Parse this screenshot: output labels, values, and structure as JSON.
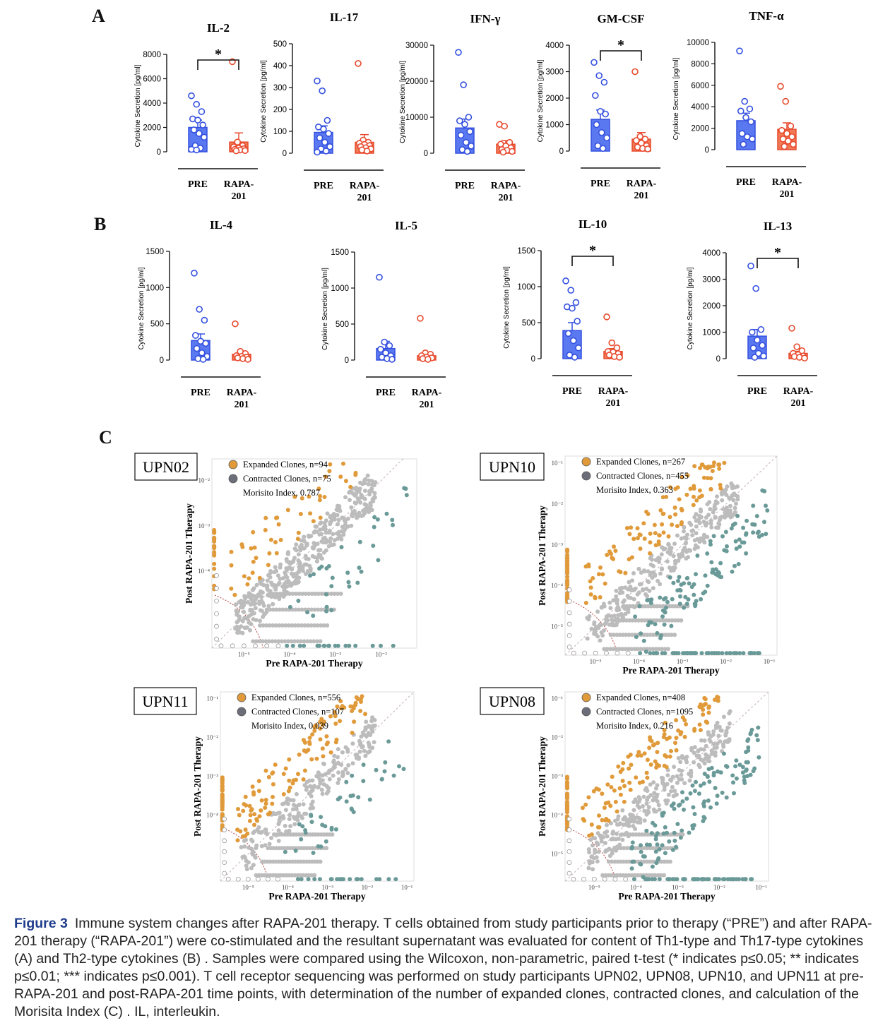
{
  "panels": {
    "a": "A",
    "b": "B",
    "c": "C"
  },
  "colors": {
    "pre": "#3450e0",
    "pre_fill": "#5a78f0",
    "rapa": "#e84a2e",
    "rapa_fill": "#f07a55",
    "expanded": "#e09a3a",
    "contracted": "#6a9a98",
    "neutral": "#bcbcbc",
    "caption_label": "#1f3d8c"
  },
  "chart_data": [
    {
      "type": "bar",
      "title": "IL-2",
      "ylabel": "Cytokine Secretion [pg/ml]",
      "categories": [
        "PRE",
        "RAPA-\n201"
      ],
      "ylim": [
        0,
        8000
      ],
      "yticks": [
        0,
        2000,
        4000,
        6000,
        8000
      ],
      "yticklabels": [
        "0",
        "2000",
        "4000",
        "6000",
        "8000"
      ],
      "means": [
        2000,
        800
      ],
      "errors": [
        600,
        750
      ],
      "points": [
        [
          4600,
          3900,
          3300,
          2700,
          2600,
          2200,
          1800,
          1500,
          1200,
          500,
          300,
          200,
          150
        ],
        [
          7400,
          800,
          500,
          400,
          300,
          250,
          200,
          150,
          100,
          80
        ]
      ],
      "significance": "*"
    },
    {
      "type": "bar",
      "title": "IL-17",
      "ylabel": "Cytokine Secretion [pg/ml]",
      "categories": [
        "PRE",
        "RAPA-\n201"
      ],
      "ylim": [
        0,
        500
      ],
      "yticks": [
        0,
        100,
        200,
        300,
        400,
        500
      ],
      "yticklabels": [
        "0",
        "100",
        "200",
        "300",
        "400",
        "500"
      ],
      "means": [
        95,
        50
      ],
      "errors": [
        30,
        35
      ],
      "points": [
        [
          330,
          285,
          150,
          120,
          110,
          90,
          70,
          50,
          30,
          20,
          10,
          5
        ],
        [
          410,
          60,
          50,
          45,
          40,
          35,
          30,
          25,
          20,
          15,
          10
        ]
      ],
      "significance": ""
    },
    {
      "type": "bar",
      "title": "IFN-γ",
      "ylabel": "Cytokine Secretion [pg/ml]",
      "categories": [
        "PRE",
        "RAPA-\n201"
      ],
      "ylim": [
        0,
        30000
      ],
      "yticks": [
        0,
        10000,
        20000,
        30000
      ],
      "yticklabels": [
        "0",
        "10000",
        "20000",
        "30000"
      ],
      "means": [
        7000,
        2500
      ],
      "errors": [
        2500,
        1000
      ],
      "points": [
        [
          28000,
          19000,
          10000,
          9000,
          8000,
          6000,
          5000,
          3000,
          2000,
          1000,
          500
        ],
        [
          8000,
          7500,
          3000,
          2500,
          2000,
          1500,
          1000,
          800,
          500,
          300
        ]
      ],
      "significance": ""
    },
    {
      "type": "bar",
      "title": "GM-CSF",
      "ylabel": "Cytokine Secretion [pg/ml]",
      "categories": [
        "PRE",
        "RAPA-\n201"
      ],
      "ylim": [
        0,
        4000
      ],
      "yticks": [
        0,
        1000,
        2000,
        3000,
        4000
      ],
      "yticklabels": [
        "0",
        "1000",
        "2000",
        "3000",
        "4000"
      ],
      "means": [
        1200,
        450
      ],
      "errors": [
        350,
        250
      ],
      "points": [
        [
          3350,
          2850,
          2600,
          2100,
          1500,
          1400,
          1000,
          700,
          500,
          200,
          100
        ],
        [
          3000,
          550,
          450,
          400,
          300,
          200,
          150,
          100,
          80
        ]
      ],
      "significance": "*"
    },
    {
      "type": "bar",
      "title": "TNF-α",
      "ylabel": "Cytokine Secretion [pg/ml]",
      "categories": [
        "PRE",
        "RAPA-\n201"
      ],
      "ylim": [
        0,
        10000
      ],
      "yticks": [
        0,
        2000,
        4000,
        6000,
        8000,
        10000
      ],
      "yticklabels": [
        "0",
        "2000",
        "4000",
        "6000",
        "8000",
        "10000"
      ],
      "means": [
        2700,
        1900
      ],
      "errors": [
        700,
        600
      ],
      "points": [
        [
          9200,
          4500,
          3800,
          3600,
          3000,
          2600,
          1500,
          1200,
          1000,
          500
        ],
        [
          5900,
          4500,
          2200,
          1800,
          1500,
          1200,
          1000,
          800,
          500,
          300
        ]
      ],
      "significance": ""
    },
    {
      "type": "bar",
      "title": "IL-4",
      "ylabel": "Cytokine Secretion [pg/ml]",
      "categories": [
        "PRE",
        "RAPA-\n201"
      ],
      "ylim": [
        0,
        1500
      ],
      "yticks": [
        0,
        500,
        1000,
        1500
      ],
      "yticklabels": [
        "0",
        "500",
        "1000",
        "1500"
      ],
      "means": [
        270,
        80
      ],
      "errors": [
        90,
        40
      ],
      "points": [
        [
          1200,
          700,
          550,
          340,
          260,
          230,
          160,
          100,
          50,
          20,
          10
        ],
        [
          500,
          120,
          90,
          60,
          50,
          40,
          30,
          20,
          10
        ]
      ],
      "significance": ""
    },
    {
      "type": "bar",
      "title": "IL-5",
      "ylabel": "Cytokine Secretion [pg/ml]",
      "categories": [
        "PRE",
        "RAPA-\n201"
      ],
      "ylim": [
        0,
        1500
      ],
      "yticks": [
        0,
        500,
        1000,
        1500
      ],
      "yticklabels": [
        "0",
        "500",
        "1000",
        "1500"
      ],
      "means": [
        160,
        60
      ],
      "errors": [
        100,
        40
      ],
      "points": [
        [
          1150,
          250,
          200,
          150,
          100,
          60,
          40,
          20,
          10
        ],
        [
          580,
          100,
          80,
          60,
          40,
          30,
          20,
          10
        ]
      ],
      "significance": ""
    },
    {
      "type": "bar",
      "title": "IL-10",
      "ylabel": "Cytokine Secretion [pg/ml]",
      "categories": [
        "PRE",
        "RAPA-\n201"
      ],
      "ylim": [
        0,
        1500
      ],
      "yticks": [
        0,
        500,
        1000,
        1500
      ],
      "yticklabels": [
        "0",
        "500",
        "1000",
        "1500"
      ],
      "means": [
        390,
        100
      ],
      "errors": [
        110,
        40
      ],
      "points": [
        [
          1080,
          950,
          780,
          720,
          700,
          520,
          350,
          250,
          150,
          50,
          20
        ],
        [
          580,
          220,
          150,
          100,
          90,
          70,
          50,
          30,
          20
        ]
      ],
      "significance": "*"
    },
    {
      "type": "bar",
      "title": "IL-13",
      "ylabel": "Cytokine Secretion [pg/ml]",
      "categories": [
        "PRE",
        "RAPA-\n201"
      ],
      "ylim": [
        0,
        4000
      ],
      "yticks": [
        0,
        1000,
        2000,
        3000,
        4000
      ],
      "yticklabels": [
        "0",
        "1000",
        "2000",
        "3000",
        "4000"
      ],
      "means": [
        850,
        200
      ],
      "errors": [
        250,
        80
      ],
      "points": [
        [
          3500,
          2650,
          1100,
          1000,
          700,
          500,
          400,
          200,
          100,
          50
        ],
        [
          1150,
          450,
          300,
          200,
          150,
          100,
          80,
          50,
          20
        ]
      ],
      "significance": "*"
    },
    {
      "type": "scatter",
      "sample": "UPN02",
      "xlabel": "Pre RAPA-201 Therapy",
      "ylabel": "Post RAPA-201 Therapy",
      "xlim": [
        2e-06,
        0.06
      ],
      "ylim": [
        2e-06,
        0.03
      ],
      "log": true,
      "xticks": [
        "10⁻⁵",
        "10⁻⁴",
        "10⁻³",
        "10⁻²"
      ],
      "yticks": [
        "10⁻²",
        "10⁻³",
        "10⁻⁴"
      ],
      "legend": [
        "Expanded Clones, n=94",
        "Contracted Clones, n=75",
        "Morisito Index, 0.787"
      ],
      "expanded_n": 94,
      "contracted_n": 75,
      "morisita_index": 0.787,
      "seed": 7
    },
    {
      "type": "scatter",
      "sample": "UPN10",
      "xlabel": "Pre RAPA-201 Therapy",
      "ylabel": "Post RAPA-201 Therapy",
      "xlim": [
        2e-06,
        0.15
      ],
      "ylim": [
        2e-06,
        0.15
      ],
      "log": true,
      "xticks": [
        "10⁻⁵",
        "10⁻⁴",
        "10⁻³",
        "10⁻²",
        "10⁻¹"
      ],
      "yticks": [
        "10⁻¹",
        "10⁻²",
        "10⁻³",
        "10⁻⁴",
        "10⁻⁵"
      ],
      "legend": [
        "Expanded Clones, n=267",
        "Contracted Clones, n=455",
        "Morisito Index, 0.363"
      ],
      "expanded_n": 267,
      "contracted_n": 455,
      "morisita_index": 0.363,
      "seed": 13
    },
    {
      "type": "scatter",
      "sample": "UPN11",
      "xlabel": "Pre RAPA-201 Therapy",
      "ylabel": "Post RAPA-201 Therapy",
      "xlim": [
        2e-06,
        0.15
      ],
      "ylim": [
        2e-06,
        0.15
      ],
      "log": true,
      "xticks": [
        "10⁻⁵",
        "10⁻⁴",
        "10⁻³",
        "10⁻²",
        "10⁻¹"
      ],
      "yticks": [
        "10⁻¹",
        "10⁻²",
        "10⁻³",
        "10⁻⁴"
      ],
      "legend": [
        "Expanded Clones, n=556",
        "Contracted Clones, n=107",
        "Morisito Index, 0.039"
      ],
      "expanded_n": 556,
      "contracted_n": 107,
      "morisita_index": 0.039,
      "seed": 29
    },
    {
      "type": "scatter",
      "sample": "UPN08",
      "xlabel": "Pre RAPA-201 Therapy",
      "ylabel": "Post RAPA-201 Therapy",
      "xlim": [
        2e-06,
        0.15
      ],
      "ylim": [
        2e-06,
        0.15
      ],
      "log": true,
      "xticks": [
        "10⁻⁵",
        "10⁻⁴",
        "10⁻³",
        "10⁻²",
        "10⁻¹"
      ],
      "yticks": [
        "10⁻¹",
        "10⁻²",
        "10⁻³",
        "10⁻⁴",
        "10⁻⁵"
      ],
      "legend": [
        "Expanded Clones, n=408",
        "Contracted Clones, n=1095",
        "Morisito Index, 0.216"
      ],
      "expanded_n": 408,
      "contracted_n": 1095,
      "morisita_index": 0.216,
      "seed": 41
    }
  ],
  "caption": {
    "label": "Figure 3",
    "text": "Immune system changes after RAPA-201 therapy. T cells obtained from study participants prior to therapy (“PRE”) and after RAPA-201 therapy (“RAPA-201”) were co-stimulated and the resultant supernatant was evaluated for content of Th1-type and Th17-type cytokines (A)  and Th2-type cytokines (B) . Samples were compared using the Wilcoxon, non-parametric, paired t-test (* indicates p≤0.05; ** indicates p≤0.01; *** indicates p≤0.001). T cell receptor sequencing was performed on study participants UPN02, UPN08, UPN10, and UPN11 at pre-RAPA-201 and post-RAPA-201 time points, with determination of the number of expanded clones, contracted clones, and calculation of the Morisita Index (C) . IL, interleukin."
  }
}
